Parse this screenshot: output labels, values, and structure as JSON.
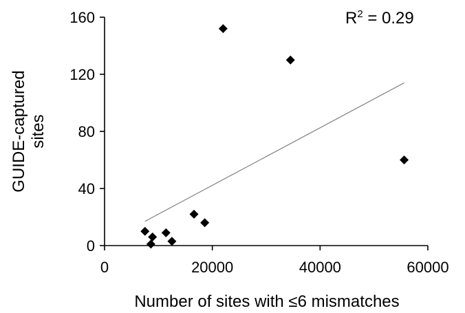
{
  "chart_data": {
    "type": "scatter",
    "title": "",
    "xlabel": "Number of sites with ≤6 mismatches",
    "ylabel_lines": [
      "GUIDE-captured",
      "sites"
    ],
    "xlim": [
      0,
      60000
    ],
    "ylim": [
      0,
      160
    ],
    "x_ticks": [
      0,
      20000,
      40000,
      60000
    ],
    "y_ticks": [
      0,
      40,
      80,
      120,
      160
    ],
    "x_tick_labels": [
      "0",
      "20000",
      "40000",
      "60000"
    ],
    "y_tick_labels": [
      "0",
      "40",
      "80",
      "120",
      "160"
    ],
    "grid": false,
    "legend": "none",
    "marker": "diamond",
    "marker_color": "#000000",
    "trendline_color": "#7f7f7f",
    "points": [
      {
        "x": 7500,
        "y": 10
      },
      {
        "x": 8600,
        "y": 1
      },
      {
        "x": 8900,
        "y": 6
      },
      {
        "x": 11400,
        "y": 9
      },
      {
        "x": 12500,
        "y": 3
      },
      {
        "x": 16600,
        "y": 22
      },
      {
        "x": 18600,
        "y": 16
      },
      {
        "x": 22000,
        "y": 152
      },
      {
        "x": 34500,
        "y": 130
      },
      {
        "x": 55600,
        "y": 60
      }
    ],
    "trendline": {
      "x_start": 7500,
      "y_start": 17,
      "x_end": 55600,
      "y_end": 114
    },
    "annotation": {
      "prefix": "R",
      "superscript": "2",
      "suffix": " = 0.29"
    }
  }
}
